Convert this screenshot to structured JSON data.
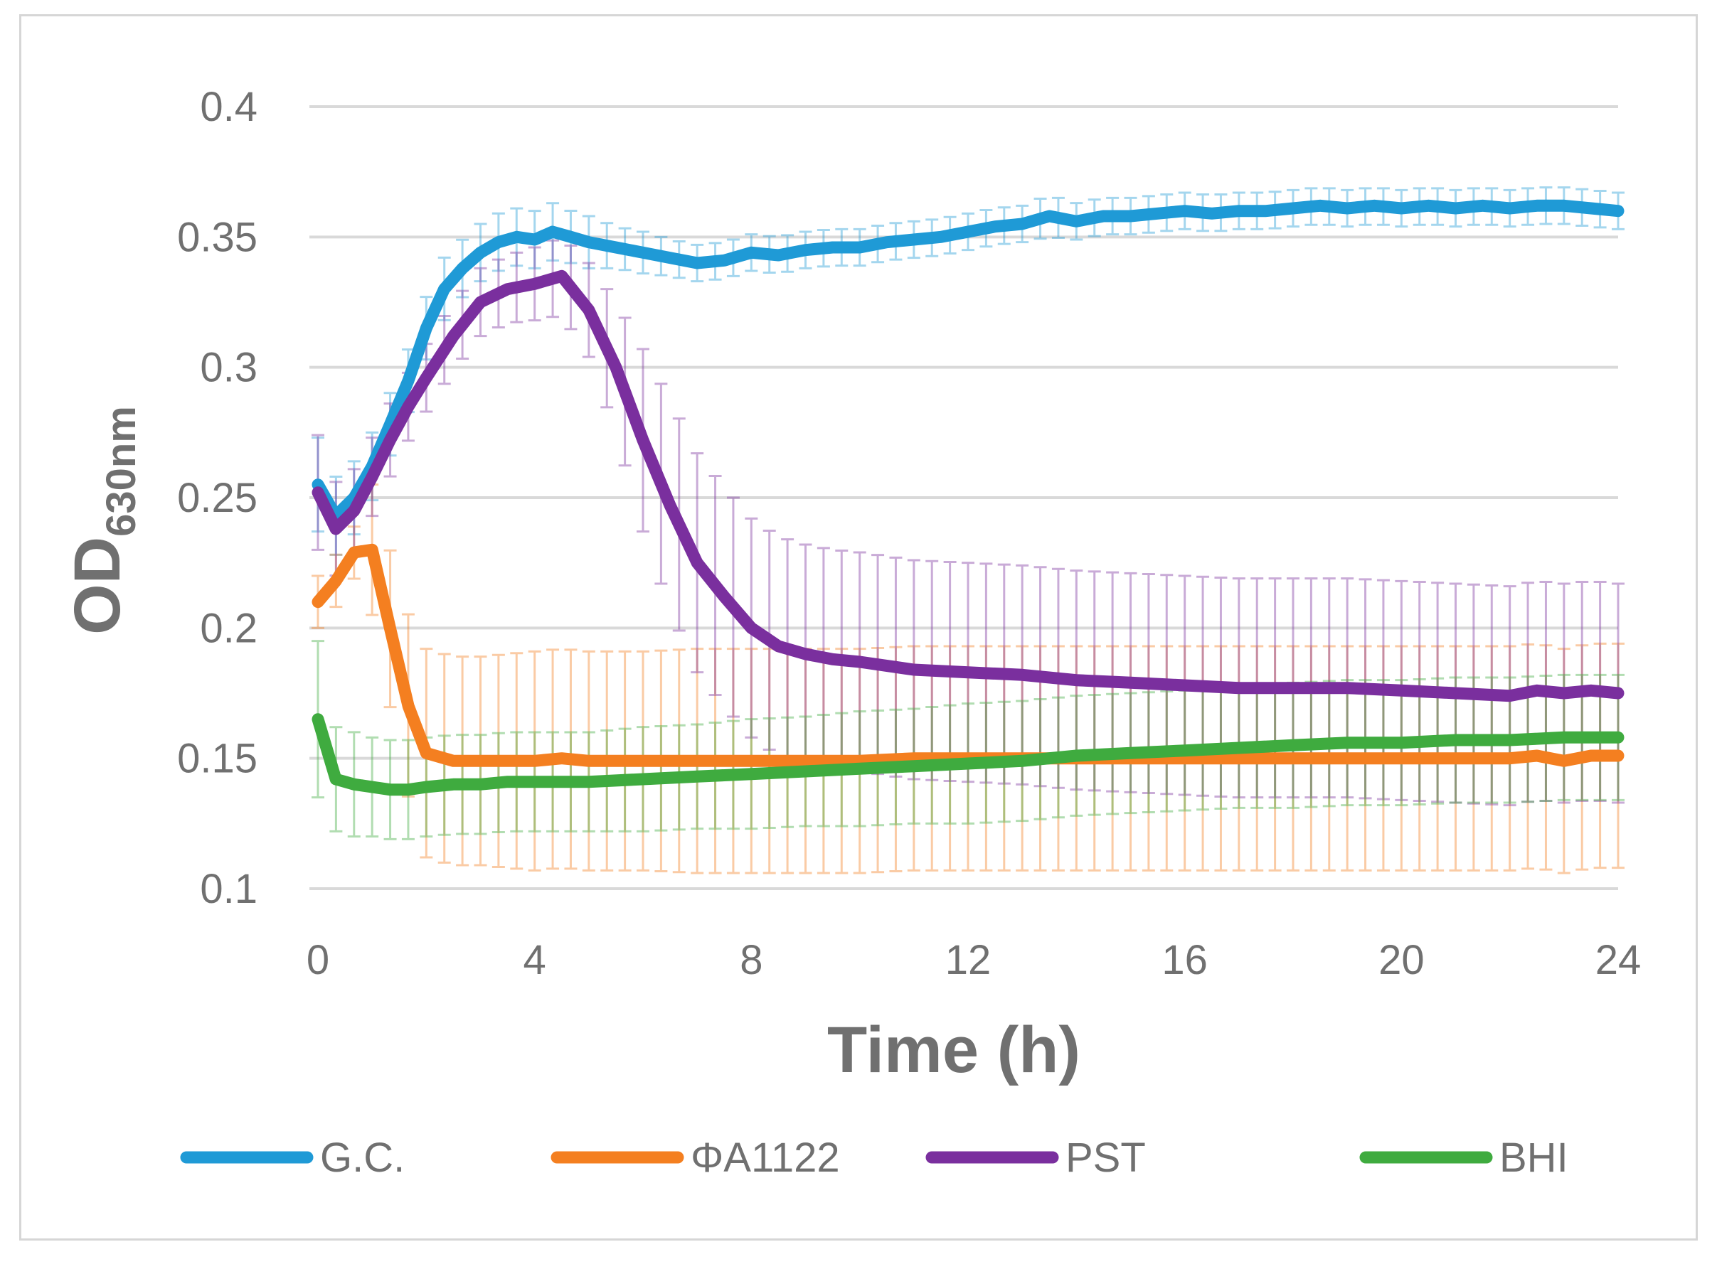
{
  "chart_data": {
    "type": "line",
    "title": "",
    "xlabel": "Time (h)",
    "ylabel": "OD",
    "ylabel_subscript": "630nm",
    "xlim": [
      0,
      24
    ],
    "ylim": [
      0.1,
      0.4
    ],
    "xticks": [
      "0",
      "4",
      "8",
      "12",
      "16",
      "20",
      "24"
    ],
    "yticks": [
      "0.1",
      "0.15",
      "0.2",
      "0.25",
      "0.3",
      "0.35",
      "0.4"
    ],
    "grid": true,
    "legend_position": "bottom",
    "error_bars": true,
    "series": [
      {
        "name": "G.C.",
        "color": "#1f9ad6",
        "x": [
          0,
          0.33,
          0.67,
          1,
          1.33,
          1.67,
          2,
          2.33,
          2.67,
          3,
          3.33,
          3.67,
          4,
          4.33,
          4.67,
          5,
          5.5,
          6,
          6.5,
          7,
          7.5,
          8,
          8.5,
          9,
          9.5,
          10,
          10.5,
          11,
          11.5,
          12,
          12.5,
          13,
          13.5,
          14,
          14.5,
          15,
          15.5,
          16,
          16.5,
          17,
          17.5,
          18,
          18.5,
          19,
          19.5,
          20,
          20.5,
          21,
          21.5,
          22,
          22.5,
          23,
          23.5,
          24
        ],
        "values": [
          0.255,
          0.243,
          0.25,
          0.262,
          0.278,
          0.295,
          0.315,
          0.33,
          0.338,
          0.344,
          0.348,
          0.35,
          0.349,
          0.352,
          0.35,
          0.348,
          0.346,
          0.344,
          0.342,
          0.34,
          0.341,
          0.344,
          0.343,
          0.345,
          0.346,
          0.346,
          0.348,
          0.349,
          0.35,
          0.352,
          0.354,
          0.355,
          0.358,
          0.356,
          0.358,
          0.358,
          0.359,
          0.36,
          0.359,
          0.36,
          0.36,
          0.361,
          0.362,
          0.361,
          0.362,
          0.361,
          0.362,
          0.361,
          0.362,
          0.361,
          0.362,
          0.362,
          0.361,
          0.36
        ],
        "error": [
          0.018,
          0.015,
          0.014,
          0.013,
          0.012,
          0.012,
          0.012,
          0.012,
          0.011,
          0.011,
          0.011,
          0.011,
          0.011,
          0.011,
          0.01,
          0.01,
          0.008,
          0.008,
          0.007,
          0.007,
          0.007,
          0.007,
          0.007,
          0.007,
          0.007,
          0.007,
          0.007,
          0.007,
          0.007,
          0.007,
          0.007,
          0.007,
          0.008,
          0.007,
          0.007,
          0.007,
          0.007,
          0.007,
          0.007,
          0.007,
          0.007,
          0.007,
          0.007,
          0.007,
          0.007,
          0.007,
          0.007,
          0.007,
          0.007,
          0.007,
          0.007,
          0.007,
          0.007,
          0.007
        ]
      },
      {
        "name": "ΦA1122",
        "color": "#f47f20",
        "x": [
          0,
          0.33,
          0.67,
          1,
          1.33,
          1.67,
          2,
          2.5,
          3,
          3.5,
          4,
          4.5,
          5,
          6,
          7,
          8,
          9,
          10,
          11,
          12,
          13,
          14,
          15,
          16,
          17,
          18,
          19,
          20,
          21,
          22,
          22.5,
          23,
          23.5,
          24
        ],
        "values": [
          0.21,
          0.218,
          0.229,
          0.23,
          0.2,
          0.17,
          0.152,
          0.149,
          0.149,
          0.149,
          0.149,
          0.15,
          0.149,
          0.149,
          0.149,
          0.149,
          0.149,
          0.149,
          0.15,
          0.15,
          0.15,
          0.15,
          0.15,
          0.15,
          0.15,
          0.15,
          0.15,
          0.15,
          0.15,
          0.15,
          0.151,
          0.149,
          0.151,
          0.151
        ],
        "error": [
          0.01,
          0.01,
          0.01,
          0.025,
          0.03,
          0.035,
          0.04,
          0.04,
          0.04,
          0.041,
          0.042,
          0.042,
          0.042,
          0.042,
          0.043,
          0.043,
          0.043,
          0.043,
          0.043,
          0.043,
          0.043,
          0.043,
          0.043,
          0.043,
          0.043,
          0.043,
          0.043,
          0.043,
          0.043,
          0.043,
          0.043,
          0.043,
          0.043,
          0.043
        ]
      },
      {
        "name": "PST",
        "color": "#7a2f9e",
        "x": [
          0,
          0.33,
          0.67,
          1,
          1.33,
          1.67,
          2,
          2.5,
          3,
          3.5,
          4,
          4.5,
          5,
          5.5,
          6,
          6.5,
          7,
          7.5,
          8,
          8.5,
          9,
          9.5,
          10,
          11,
          12,
          13,
          14,
          15,
          16,
          17,
          18,
          19,
          20,
          21,
          22,
          22.5,
          23,
          23.5,
          24
        ],
        "values": [
          0.252,
          0.238,
          0.245,
          0.258,
          0.272,
          0.285,
          0.296,
          0.312,
          0.325,
          0.33,
          0.332,
          0.335,
          0.322,
          0.3,
          0.272,
          0.247,
          0.225,
          0.212,
          0.2,
          0.193,
          0.19,
          0.188,
          0.187,
          0.184,
          0.183,
          0.182,
          0.18,
          0.179,
          0.178,
          0.177,
          0.177,
          0.177,
          0.176,
          0.175,
          0.174,
          0.176,
          0.175,
          0.176,
          0.175
        ],
        "error": [
          0.022,
          0.018,
          0.016,
          0.015,
          0.014,
          0.013,
          0.013,
          0.013,
          0.013,
          0.013,
          0.014,
          0.015,
          0.018,
          0.025,
          0.035,
          0.04,
          0.042,
          0.042,
          0.042,
          0.042,
          0.042,
          0.042,
          0.042,
          0.042,
          0.042,
          0.042,
          0.042,
          0.042,
          0.042,
          0.042,
          0.042,
          0.042,
          0.042,
          0.042,
          0.042,
          0.042,
          0.042,
          0.042,
          0.042
        ]
      },
      {
        "name": "BHI",
        "color": "#3fab3f",
        "x": [
          0,
          0.33,
          0.67,
          1,
          1.33,
          1.67,
          2,
          2.5,
          3,
          3.5,
          4,
          5,
          6,
          7,
          8,
          9,
          10,
          11,
          12,
          13,
          14,
          15,
          16,
          17,
          18,
          19,
          20,
          21,
          22,
          23,
          24
        ],
        "values": [
          0.165,
          0.142,
          0.14,
          0.139,
          0.138,
          0.138,
          0.139,
          0.14,
          0.14,
          0.141,
          0.141,
          0.141,
          0.142,
          0.143,
          0.144,
          0.145,
          0.146,
          0.147,
          0.148,
          0.149,
          0.151,
          0.152,
          0.153,
          0.154,
          0.155,
          0.156,
          0.156,
          0.157,
          0.157,
          0.158,
          0.158
        ],
        "error": [
          0.03,
          0.02,
          0.02,
          0.019,
          0.019,
          0.019,
          0.019,
          0.019,
          0.019,
          0.019,
          0.019,
          0.019,
          0.02,
          0.02,
          0.021,
          0.021,
          0.022,
          0.022,
          0.023,
          0.023,
          0.023,
          0.023,
          0.023,
          0.023,
          0.024,
          0.024,
          0.024,
          0.024,
          0.024,
          0.024,
          0.024
        ]
      }
    ]
  }
}
